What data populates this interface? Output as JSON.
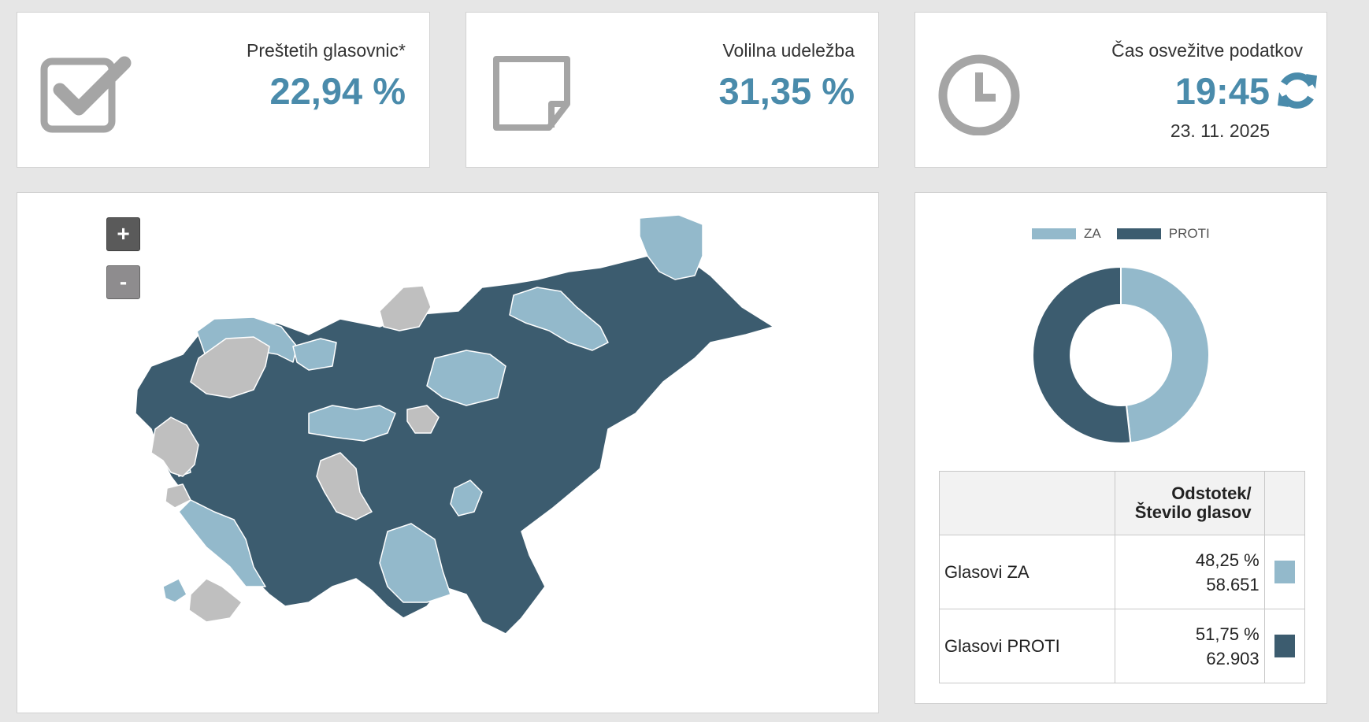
{
  "stats": {
    "ballots": {
      "label": "Preštetih glasovnic*",
      "value": "22,94 %"
    },
    "turnout": {
      "label": "Volilna udeležba",
      "value": "31,35 %"
    },
    "refresh": {
      "label": "Čas osvežitve podatkov",
      "time": "19:45",
      "date": "23. 11. 2025"
    }
  },
  "map": {
    "zoom_in_label": "+",
    "zoom_out_label": "-"
  },
  "results": {
    "legend": [
      {
        "label": "ZA",
        "color": "#93b9cb"
      },
      {
        "label": "PROTI",
        "color": "#3c5c6f"
      }
    ],
    "table_header_line1": "Odstotek/",
    "table_header_line2": "Število glasov",
    "rows": [
      {
        "label": "Glasovi ZA",
        "percent": "48,25 %",
        "count": "58.651",
        "color": "#93b9cb"
      },
      {
        "label": "Glasovi PROTI",
        "percent": "51,75 %",
        "count": "62.903",
        "color": "#3c5c6f"
      }
    ]
  },
  "chart_data": {
    "type": "pie",
    "categories": [
      "ZA",
      "PROTI"
    ],
    "values": [
      48.25,
      51.75
    ],
    "colors": [
      "#93b9cb",
      "#3c5c6f"
    ],
    "donut": true,
    "legend_position": "top"
  },
  "colors": {
    "accent": "#4a8bab",
    "za": "#93b9cb",
    "proti": "#3c5c6f",
    "no_data": "#bfbfbf"
  }
}
